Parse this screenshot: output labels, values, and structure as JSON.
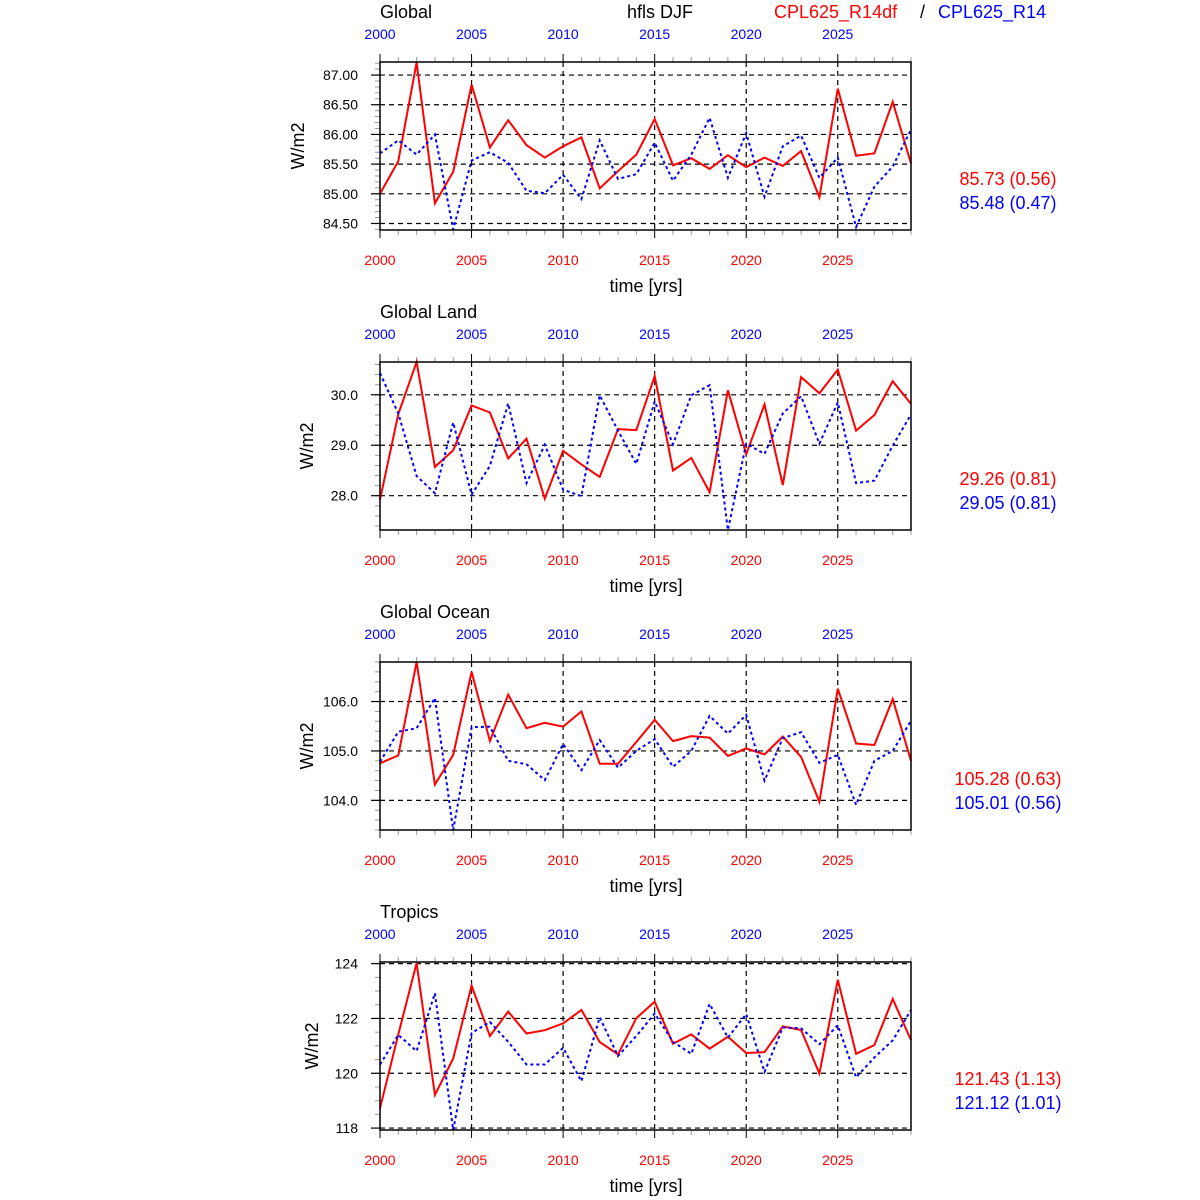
{
  "header": {
    "variable": "hfls DJF",
    "series_a": "CPL625_R14df",
    "separator": "/",
    "series_b": "CPL625_R14"
  },
  "colors": {
    "series_a": "#ff0000",
    "series_b": "#0000ff"
  },
  "chart_data": [
    {
      "type": "line",
      "title": "Global",
      "xlabel": "time [yrs]",
      "ylabel": "W/m2",
      "xlim": [
        2000,
        2029
      ],
      "ylim": [
        84.39,
        87.22
      ],
      "xticks": [
        "2000",
        "2005",
        "2010",
        "2015",
        "2020",
        "2025"
      ],
      "yticks": [
        "87.00",
        "86.50",
        "86.00",
        "85.50",
        "85.00",
        "84.50"
      ],
      "yminor": 0.1,
      "grid": true,
      "stats": [
        "85.73 (0.56)",
        "85.48 (0.47)"
      ],
      "series": [
        {
          "name": "CPL625_R14df",
          "values": [
            85.0,
            85.55,
            87.21,
            84.84,
            85.37,
            86.84,
            85.78,
            86.24,
            85.82,
            85.61,
            85.8,
            85.95,
            85.09,
            85.38,
            85.66,
            86.26,
            85.48,
            85.6,
            85.42,
            85.65,
            85.45,
            85.61,
            85.47,
            85.72,
            84.94,
            86.77,
            85.64,
            85.68,
            86.55,
            85.51
          ]
        },
        {
          "name": "CPL625_R14",
          "values": [
            85.68,
            85.9,
            85.66,
            86.0,
            84.4,
            85.56,
            85.7,
            85.52,
            85.05,
            85.01,
            85.32,
            84.91,
            85.9,
            85.25,
            85.33,
            85.86,
            85.22,
            85.66,
            86.28,
            85.27,
            86.02,
            84.95,
            85.8,
            85.98,
            85.27,
            85.61,
            84.44,
            85.12,
            85.46,
            86.08
          ]
        }
      ]
    },
    {
      "type": "line",
      "title": "Global Land",
      "xlabel": "time [yrs]",
      "ylabel": "W/m2",
      "xlim": [
        2000,
        2029
      ],
      "ylim": [
        27.32,
        30.65
      ],
      "xticks": [
        "2000",
        "2005",
        "2010",
        "2015",
        "2020",
        "2025"
      ],
      "yticks": [
        "30.0",
        "29.0",
        "28.0"
      ],
      "yminor": 0.2,
      "grid": true,
      "stats": [
        "29.26 (0.81)",
        "29.05 (0.81)"
      ],
      "series": [
        {
          "name": "CPL625_R14df",
          "values": [
            27.92,
            29.62,
            30.65,
            28.57,
            28.9,
            29.79,
            29.65,
            28.74,
            29.13,
            27.94,
            28.89,
            28.62,
            28.37,
            29.32,
            29.3,
            30.37,
            28.5,
            28.75,
            28.07,
            30.09,
            28.82,
            29.81,
            28.21,
            30.35,
            30.03,
            30.5,
            29.29,
            29.6,
            30.27,
            29.82
          ]
        },
        {
          "name": "CPL625_R14",
          "values": [
            30.43,
            29.63,
            28.39,
            28.05,
            29.45,
            28.02,
            28.59,
            29.83,
            28.25,
            29.01,
            28.12,
            27.99,
            29.99,
            29.29,
            28.63,
            29.87,
            29.02,
            29.99,
            30.19,
            27.32,
            29.03,
            28.83,
            29.63,
            29.97,
            29.03,
            29.85,
            28.25,
            28.3,
            28.99,
            29.61
          ]
        }
      ]
    },
    {
      "type": "line",
      "title": "Global Ocean",
      "xlabel": "time [yrs]",
      "ylabel": "W/m2",
      "xlim": [
        2000,
        2029
      ],
      "ylim": [
        103.4,
        106.8
      ],
      "xticks": [
        "2000",
        "2005",
        "2010",
        "2015",
        "2020",
        "2025"
      ],
      "yticks": [
        "106.0",
        "105.0",
        "104.0"
      ],
      "yminor": 0.2,
      "grid": true,
      "stats": [
        "105.28 (0.63)",
        "105.01 (0.56)"
      ],
      "series": [
        {
          "name": "CPL625_R14df",
          "values": [
            104.75,
            104.91,
            106.8,
            104.32,
            104.92,
            106.6,
            105.2,
            106.14,
            105.46,
            105.57,
            105.49,
            105.8,
            104.74,
            104.74,
            105.18,
            105.63,
            105.2,
            105.3,
            105.27,
            104.9,
            105.05,
            104.93,
            105.29,
            104.88,
            103.97,
            106.26,
            105.15,
            105.12,
            106.05,
            104.8
          ]
        },
        {
          "name": "CPL625_R14",
          "values": [
            104.78,
            105.39,
            105.46,
            106.07,
            103.4,
            105.48,
            105.49,
            104.8,
            104.73,
            104.41,
            105.14,
            104.61,
            105.22,
            104.66,
            105.0,
            105.24,
            104.68,
            105.0,
            105.71,
            105.35,
            105.73,
            104.4,
            105.26,
            105.38,
            104.76,
            104.92,
            103.91,
            104.8,
            105.0,
            105.61
          ]
        }
      ]
    },
    {
      "type": "line",
      "title": "Tropics",
      "xlabel": "time [yrs]",
      "ylabel": "W/m2",
      "xlim": [
        2000,
        2029
      ],
      "ylim": [
        117.93,
        124.06
      ],
      "xticks": [
        "2000",
        "2005",
        "2010",
        "2015",
        "2020",
        "2025"
      ],
      "yticks": [
        "124",
        "122",
        "120",
        "118"
      ],
      "yminor": 0.5,
      "grid": true,
      "stats": [
        "121.43 (1.13)",
        "121.12 (1.01)"
      ],
      "series": [
        {
          "name": "CPL625_R14df",
          "values": [
            118.72,
            121.42,
            124.02,
            119.21,
            120.54,
            123.2,
            121.36,
            122.25,
            121.45,
            121.57,
            121.82,
            122.31,
            121.14,
            120.69,
            122.01,
            122.61,
            121.08,
            121.42,
            120.9,
            121.33,
            120.74,
            120.77,
            121.71,
            121.58,
            119.99,
            123.41,
            120.71,
            121.03,
            122.71,
            121.21
          ]
        },
        {
          "name": "CPL625_R14",
          "values": [
            120.32,
            121.4,
            120.81,
            122.92,
            117.93,
            121.47,
            121.87,
            121.15,
            120.32,
            120.32,
            120.93,
            119.71,
            122.04,
            120.63,
            121.36,
            122.18,
            121.15,
            120.71,
            122.53,
            121.3,
            122.16,
            120.05,
            121.67,
            121.64,
            121.06,
            121.75,
            119.85,
            120.58,
            121.2,
            122.31
          ]
        }
      ]
    }
  ]
}
